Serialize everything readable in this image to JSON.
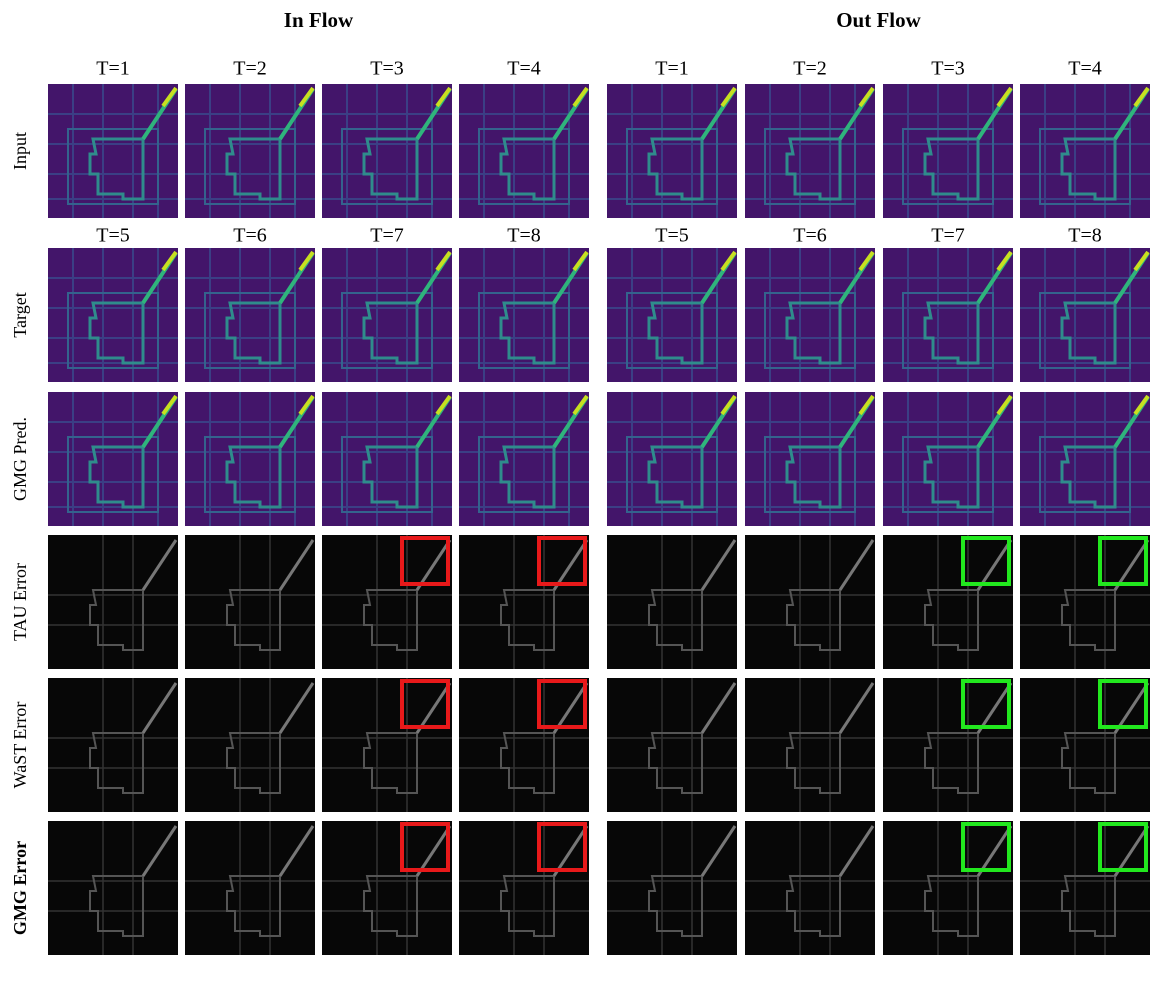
{
  "panels": [
    {
      "title": "In Flow",
      "input_headers": [
        "T=1",
        "T=2",
        "T=3",
        "T=4"
      ],
      "target_headers": [
        "T=5",
        "T=6",
        "T=7",
        "T=8"
      ]
    },
    {
      "title": "Out Flow",
      "input_headers": [
        "T=1",
        "T=2",
        "T=3",
        "T=4"
      ],
      "target_headers": [
        "T=5",
        "T=6",
        "T=7",
        "T=8"
      ]
    }
  ],
  "row_labels": [
    "Input",
    "Target",
    "GMG Pred.",
    "TAU Error",
    "WaST Error",
    "GMG Error"
  ]
}
